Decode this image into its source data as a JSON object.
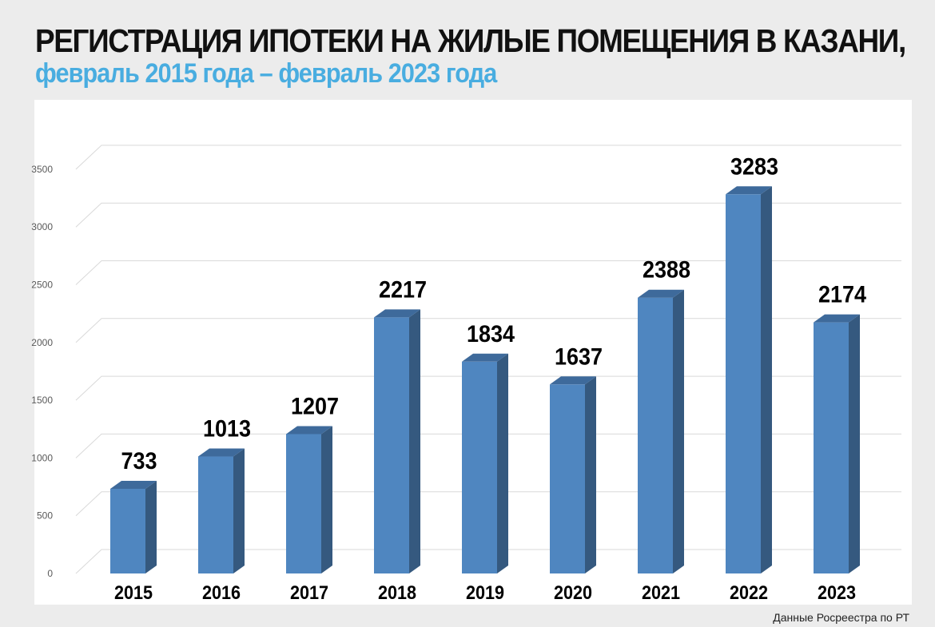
{
  "header": {
    "title": "РЕГИСТРАЦИЯ ИПОТЕКИ НА ЖИЛЫЕ ПОМЕЩЕНИЯ В КАЗАНИ,",
    "subtitle": "февраль 2015 года – февраль 2023 года"
  },
  "chart_data": {
    "type": "bar",
    "categories": [
      "2015",
      "2016",
      "2017",
      "2018",
      "2019",
      "2020",
      "2021",
      "2022",
      "2023"
    ],
    "values": [
      733,
      1013,
      1207,
      2217,
      1834,
      1637,
      2388,
      3283,
      2174
    ],
    "xlabel": "",
    "ylabel": "",
    "ylim": [
      0,
      3500
    ],
    "yticks": [
      0,
      500,
      1000,
      1500,
      2000,
      2500,
      3000,
      3500
    ],
    "grid": true,
    "style": "3d-bar",
    "colors": {
      "front": "#4f86c0",
      "side": "#35597f",
      "top": "#3e6a9b",
      "grid": "#d9d9d9"
    }
  },
  "footer": {
    "source": "Данные Росреестра по РТ"
  }
}
